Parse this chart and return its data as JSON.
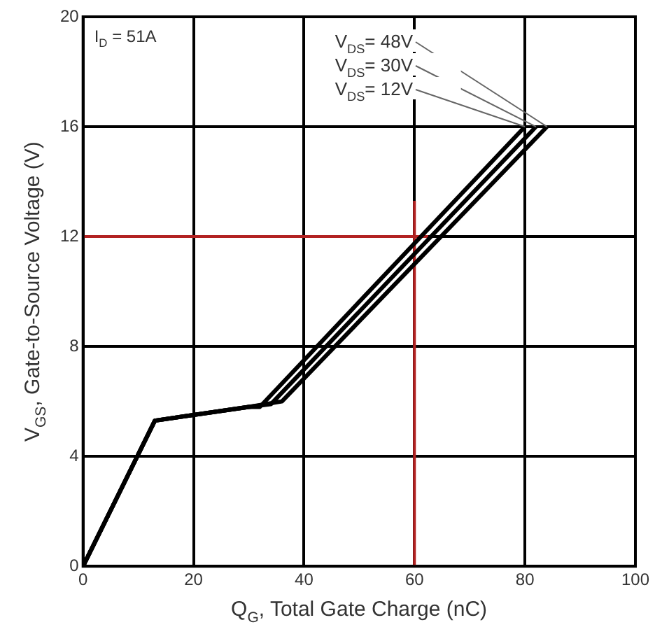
{
  "chart_data": {
    "type": "line",
    "xlabel": "Q$_{G}$, Total Gate Charge (nC)",
    "ylabel": "V$_{GS}$, Gate-to-Source Voltage (V)",
    "annotations": [
      "I$_{D}$ = 51A"
    ],
    "series": [
      {
        "name": "V$_{DS}$= 48V",
        "color": "#000000",
        "x": [
          0,
          13,
          30,
          36,
          84
        ],
        "values": [
          0,
          5.3,
          5.8,
          6.0,
          16
        ]
      },
      {
        "name": "V$_{DS}$= 30V",
        "color": "#000000",
        "x": [
          0,
          13,
          30,
          34,
          82
        ],
        "values": [
          0,
          5.3,
          5.8,
          5.9,
          16
        ]
      },
      {
        "name": "V$_{DS}$= 12V",
        "color": "#000000",
        "x": [
          0,
          13,
          30,
          32,
          80
        ],
        "values": [
          0,
          5.3,
          5.8,
          5.8,
          16
        ]
      },
      {
        "color": "#b22222",
        "x": [
          0,
          62.5
        ],
        "values": [
          12,
          12
        ]
      },
      {
        "color": "#b22222",
        "x": [
          60,
          60
        ],
        "values": [
          0,
          13.3
        ]
      }
    ],
    "xlim": [
      0,
      100
    ],
    "xticks": [
      0,
      20,
      40,
      60,
      80,
      100
    ],
    "ylim": [
      0,
      20
    ],
    "yticks": [
      0,
      4,
      8,
      12,
      16,
      20
    ],
    "grid": true,
    "legend": false,
    "marker": "none",
    "line_style": "solid"
  }
}
